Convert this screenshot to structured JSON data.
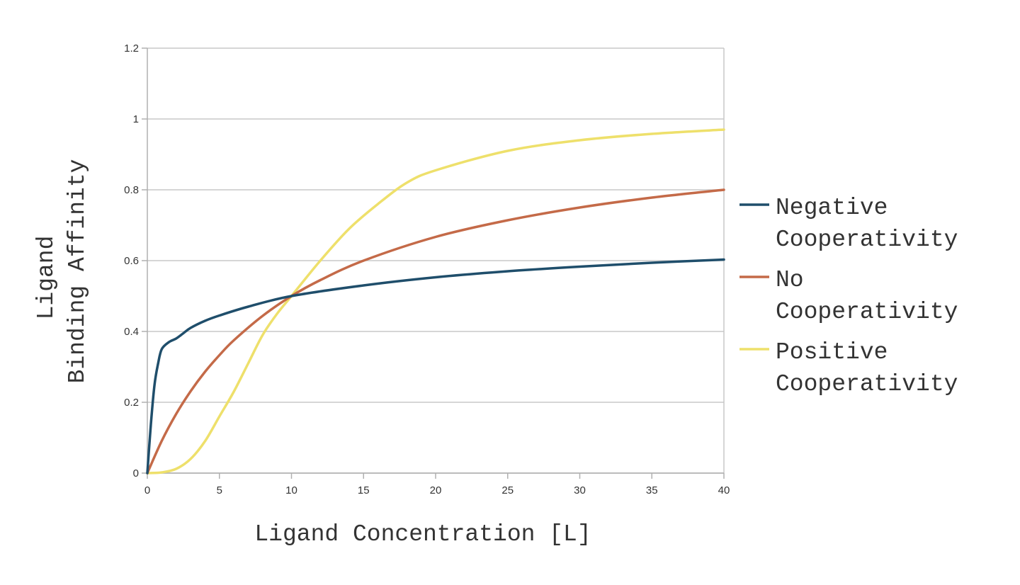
{
  "chart_data": {
    "type": "line",
    "title": "",
    "xlabel": "Ligand Concentration [L]",
    "ylabel_lines": [
      "Ligand",
      "Binding Affinity"
    ],
    "xlim": [
      0,
      40
    ],
    "ylim": [
      0,
      1.2
    ],
    "x_ticks": [
      "0",
      "5",
      "10",
      "15",
      "20",
      "25",
      "30",
      "35",
      "40"
    ],
    "y_ticks": [
      "0",
      "0.2",
      "0.4",
      "0.6",
      "0.8",
      "1",
      "1.2"
    ],
    "grid": "horizontal",
    "legend_position": "right",
    "series": [
      {
        "name_lines": [
          "Negative",
          "Cooperativity"
        ],
        "color": "#1f4e6b",
        "points": [
          [
            0,
            0
          ],
          [
            0.25,
            0.14
          ],
          [
            0.5,
            0.25
          ],
          [
            0.75,
            0.31
          ],
          [
            1,
            0.35
          ],
          [
            1.5,
            0.37
          ],
          [
            2,
            0.38
          ],
          [
            2.5,
            0.395
          ],
          [
            3,
            0.41
          ],
          [
            4,
            0.43
          ],
          [
            5,
            0.445
          ],
          [
            7,
            0.47
          ],
          [
            10,
            0.5
          ],
          [
            15,
            0.53
          ],
          [
            20,
            0.553
          ],
          [
            25,
            0.57
          ],
          [
            30,
            0.583
          ],
          [
            35,
            0.594
          ],
          [
            40,
            0.603
          ]
        ]
      },
      {
        "name_lines": [
          "No",
          "Cooperativity"
        ],
        "color": "#c46a48",
        "points": [
          [
            0,
            0
          ],
          [
            1,
            0.091
          ],
          [
            2,
            0.167
          ],
          [
            3,
            0.231
          ],
          [
            4,
            0.286
          ],
          [
            5,
            0.333
          ],
          [
            6,
            0.375
          ],
          [
            8,
            0.444
          ],
          [
            10,
            0.5
          ],
          [
            12,
            0.545
          ],
          [
            15,
            0.6
          ],
          [
            20,
            0.667
          ],
          [
            25,
            0.714
          ],
          [
            30,
            0.75
          ],
          [
            35,
            0.778
          ],
          [
            40,
            0.8
          ]
        ]
      },
      {
        "name_lines": [
          "Positive",
          "Cooperativity"
        ],
        "color": "#eee06b",
        "points": [
          [
            0,
            0
          ],
          [
            1,
            0.002
          ],
          [
            2,
            0.012
          ],
          [
            3,
            0.04
          ],
          [
            4,
            0.09
          ],
          [
            5,
            0.16
          ],
          [
            6,
            0.23
          ],
          [
            7,
            0.31
          ],
          [
            8,
            0.39
          ],
          [
            9,
            0.45
          ],
          [
            10,
            0.5
          ],
          [
            12,
            0.6
          ],
          [
            14,
            0.69
          ],
          [
            16,
            0.76
          ],
          [
            18,
            0.82
          ],
          [
            20,
            0.855
          ],
          [
            25,
            0.91
          ],
          [
            30,
            0.94
          ],
          [
            35,
            0.958
          ],
          [
            40,
            0.97
          ]
        ]
      }
    ]
  }
}
